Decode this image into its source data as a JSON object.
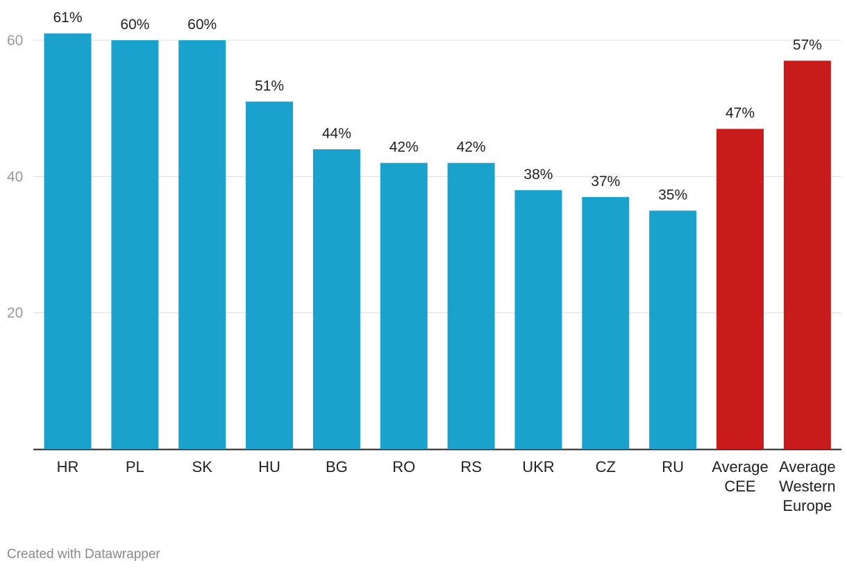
{
  "chart_data": {
    "type": "bar",
    "categories": [
      "HR",
      "PL",
      "SK",
      "HU",
      "BG",
      "RO",
      "RS",
      "UKR",
      "CZ",
      "RU",
      "Average CEE",
      "Average Western Europe"
    ],
    "values": [
      61,
      60,
      60,
      51,
      44,
      42,
      42,
      38,
      37,
      35,
      47,
      57
    ],
    "value_labels": [
      "61%",
      "60%",
      "60%",
      "51%",
      "44%",
      "42%",
      "42%",
      "38%",
      "37%",
      "35%",
      "47%",
      "57%"
    ],
    "category_lines": [
      [
        "HR"
      ],
      [
        "PL"
      ],
      [
        "SK"
      ],
      [
        "HU"
      ],
      [
        "BG"
      ],
      [
        "RO"
      ],
      [
        "RS"
      ],
      [
        "UKR"
      ],
      [
        "CZ"
      ],
      [
        "RU"
      ],
      [
        "Average",
        "CEE"
      ],
      [
        "Average",
        "Western",
        "Europe"
      ]
    ],
    "bar_colors": [
      "#1aa1cc",
      "#1aa1cc",
      "#1aa1cc",
      "#1aa1cc",
      "#1aa1cc",
      "#1aa1cc",
      "#1aa1cc",
      "#1aa1cc",
      "#1aa1cc",
      "#1aa1cc",
      "#c81c1c",
      "#c81c1c"
    ],
    "yticks": [
      20,
      40,
      60
    ],
    "ylim": [
      0,
      60
    ],
    "grid": true,
    "title": "",
    "xlabel": "",
    "ylabel": ""
  },
  "credit": "Created with Datawrapper"
}
